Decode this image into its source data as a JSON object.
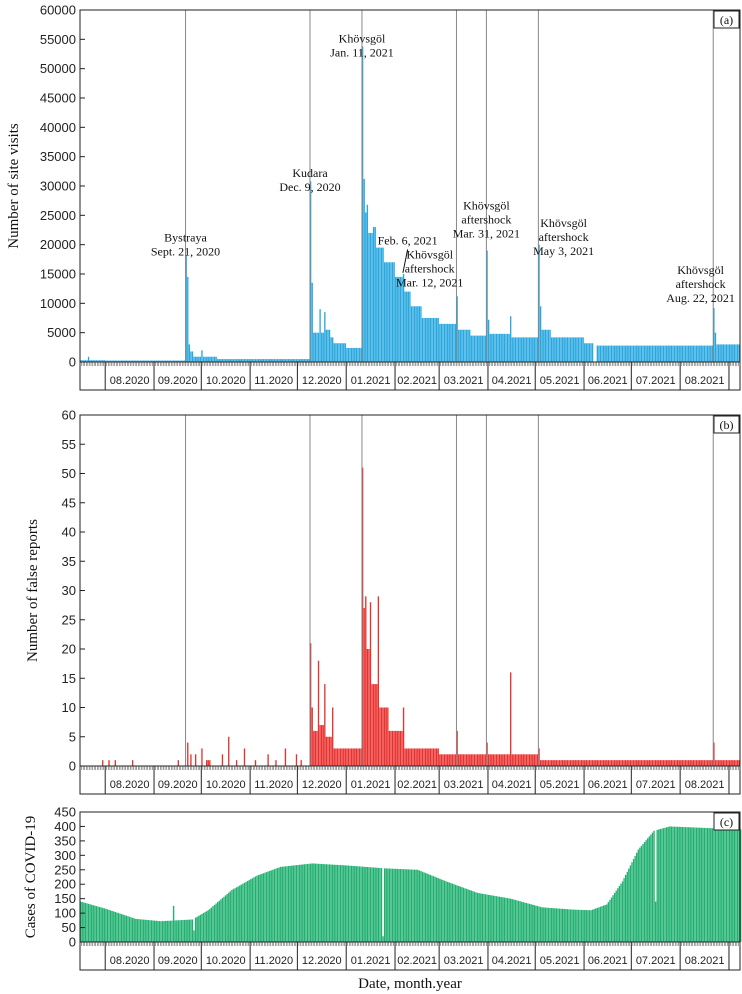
{
  "chart_data": [
    {
      "id": "a",
      "type": "bar",
      "panel_label": "(a)",
      "ylabel": "Number of site visits",
      "ylim": [
        0,
        60000
      ],
      "yticks": [
        0,
        5000,
        10000,
        15000,
        20000,
        25000,
        30000,
        35000,
        40000,
        45000,
        50000,
        55000,
        60000
      ],
      "color": "#29a8e0",
      "months": [
        "08.2020",
        "09.2020",
        "10.2020",
        "11.2020",
        "12.2020",
        "01.2021",
        "02.2021",
        "03.2021",
        "04.2021",
        "05.2021",
        "06.2021",
        "07.2021",
        "08.2021"
      ],
      "event_lines": [
        "2020-09-21",
        "2020-12-09",
        "2021-01-11",
        "2021-03-12",
        "2021-03-31",
        "2021-05-03",
        "2021-08-22"
      ],
      "annotations": [
        {
          "lines": [
            "Bystraya",
            "Sept. 21, 2020"
          ],
          "date": "2020-09-21",
          "value": 20500
        },
        {
          "lines": [
            "Kudara",
            "Dec. 9, 2020"
          ],
          "date": "2020-12-09",
          "value": 31500
        },
        {
          "lines": [
            "Khövsgöl",
            "Jan. 11, 2021"
          ],
          "date": "2021-01-11",
          "value": 54500
        },
        {
          "lines": [
            "Feb. 6, 2021"
          ],
          "date": "2021-02-09",
          "value": 20000
        },
        {
          "lines": [
            "Khövsgöl",
            "aftershock",
            "Mar. 12, 2021"
          ],
          "date": "2021-02-23",
          "value": 17600
        },
        {
          "lines": [
            "Khövsgöl",
            "aftershock",
            "Mar. 31, 2021"
          ],
          "date": "2021-03-31",
          "value": 26000
        },
        {
          "lines": [
            "Khövsgöl",
            "aftershock",
            "May 3, 2021"
          ],
          "date": "2021-05-19",
          "value": 23000
        },
        {
          "lines": [
            "Khövsgöl",
            "aftershock",
            "Aug. 22, 2021"
          ],
          "date": "2021-08-14",
          "value": 15000
        }
      ],
      "leader_line": {
        "from_date": "2021-02-09",
        "from_value": 19200,
        "to_date": "2021-02-06",
        "to_value": 15200
      },
      "series": [
        {
          "from": "2020-07-16",
          "to": "2020-07-31",
          "value": 300
        },
        {
          "from": "2020-07-21",
          "to": "2020-07-21",
          "value": 900
        },
        {
          "from": "2020-08-01",
          "to": "2020-09-20",
          "value": 250
        },
        {
          "from": "2020-09-21",
          "to": "2020-09-21",
          "value": 18200
        },
        {
          "from": "2020-09-22",
          "to": "2020-09-22",
          "value": 14500
        },
        {
          "from": "2020-09-23",
          "to": "2020-09-23",
          "value": 3000
        },
        {
          "from": "2020-09-24",
          "to": "2020-09-25",
          "value": 1800
        },
        {
          "from": "2020-09-26",
          "to": "2020-09-30",
          "value": 900
        },
        {
          "from": "2020-10-01",
          "to": "2020-10-01",
          "value": 2000
        },
        {
          "from": "2020-10-02",
          "to": "2020-10-10",
          "value": 900
        },
        {
          "from": "2020-10-11",
          "to": "2020-12-08",
          "value": 500
        },
        {
          "from": "2020-12-09",
          "to": "2020-12-09",
          "value": 30800
        },
        {
          "from": "2020-12-10",
          "to": "2020-12-10",
          "value": 13500
        },
        {
          "from": "2020-12-11",
          "to": "2020-12-14",
          "value": 5000
        },
        {
          "from": "2020-12-15",
          "to": "2020-12-15",
          "value": 9000
        },
        {
          "from": "2020-12-16",
          "to": "2020-12-17",
          "value": 5000
        },
        {
          "from": "2020-12-18",
          "to": "2020-12-18",
          "value": 8500
        },
        {
          "from": "2020-12-19",
          "to": "2020-12-21",
          "value": 5500
        },
        {
          "from": "2020-12-22",
          "to": "2020-12-23",
          "value": 4200
        },
        {
          "from": "2020-12-24",
          "to": "2020-12-31",
          "value": 3200
        },
        {
          "from": "2021-01-01",
          "to": "2021-01-10",
          "value": 2400
        },
        {
          "from": "2021-01-11",
          "to": "2021-01-11",
          "value": 53800
        },
        {
          "from": "2021-01-12",
          "to": "2021-01-12",
          "value": 31200
        },
        {
          "from": "2021-01-13",
          "to": "2021-01-13",
          "value": 25500
        },
        {
          "from": "2021-01-14",
          "to": "2021-01-14",
          "value": 26800
        },
        {
          "from": "2021-01-15",
          "to": "2021-01-17",
          "value": 22000
        },
        {
          "from": "2021-01-18",
          "to": "2021-01-19",
          "value": 23000
        },
        {
          "from": "2021-01-20",
          "to": "2021-01-24",
          "value": 19500
        },
        {
          "from": "2021-01-25",
          "to": "2021-01-31",
          "value": 17000
        },
        {
          "from": "2021-02-01",
          "to": "2021-02-05",
          "value": 14500
        },
        {
          "from": "2021-02-06",
          "to": "2021-02-06",
          "value": 15000
        },
        {
          "from": "2021-02-07",
          "to": "2021-02-10",
          "value": 12000
        },
        {
          "from": "2021-02-11",
          "to": "2021-02-17",
          "value": 9500
        },
        {
          "from": "2021-02-18",
          "to": "2021-02-28",
          "value": 7500
        },
        {
          "from": "2021-03-01",
          "to": "2021-03-11",
          "value": 6500
        },
        {
          "from": "2021-03-12",
          "to": "2021-03-12",
          "value": 11200
        },
        {
          "from": "2021-03-13",
          "to": "2021-03-20",
          "value": 5500
        },
        {
          "from": "2021-03-21",
          "to": "2021-03-30",
          "value": 4500
        },
        {
          "from": "2021-03-31",
          "to": "2021-03-31",
          "value": 19000
        },
        {
          "from": "2021-04-01",
          "to": "2021-04-01",
          "value": 7200
        },
        {
          "from": "2021-04-02",
          "to": "2021-04-14",
          "value": 4800
        },
        {
          "from": "2021-04-15",
          "to": "2021-04-15",
          "value": 7800
        },
        {
          "from": "2021-04-16",
          "to": "2021-05-02",
          "value": 4200
        },
        {
          "from": "2021-05-03",
          "to": "2021-05-03",
          "value": 20000
        },
        {
          "from": "2021-05-04",
          "to": "2021-05-04",
          "value": 9500
        },
        {
          "from": "2021-05-05",
          "to": "2021-05-10",
          "value": 5500
        },
        {
          "from": "2021-05-11",
          "to": "2021-05-31",
          "value": 4200
        },
        {
          "from": "2021-06-01",
          "to": "2021-06-06",
          "value": 3200
        },
        {
          "from": "2021-06-07",
          "to": "2021-06-08",
          "value": 0
        },
        {
          "from": "2021-06-09",
          "to": "2021-08-21",
          "value": 2800
        },
        {
          "from": "2021-08-22",
          "to": "2021-08-22",
          "value": 9200
        },
        {
          "from": "2021-08-23",
          "to": "2021-08-23",
          "value": 5000
        },
        {
          "from": "2021-08-24",
          "to": "2021-09-07",
          "value": 3000
        }
      ]
    },
    {
      "id": "b",
      "type": "bar",
      "panel_label": "(b)",
      "ylabel": "Number of false reports",
      "ylim": [
        0,
        60
      ],
      "yticks": [
        0,
        5,
        10,
        15,
        20,
        25,
        30,
        35,
        40,
        45,
        50,
        55,
        60
      ],
      "color": "#e8312e",
      "months": [
        "08.2020",
        "09.2020",
        "10.2020",
        "11.2020",
        "12.2020",
        "01.2021",
        "02.2021",
        "03.2021",
        "04.2021",
        "05.2021",
        "06.2021",
        "07.2021",
        "08.2021"
      ],
      "event_lines": [
        "2020-09-21",
        "2020-12-09",
        "2021-01-11",
        "2021-03-12",
        "2021-03-31",
        "2021-05-03",
        "2021-08-22"
      ],
      "series": [
        {
          "from": "2020-07-30",
          "to": "2020-07-30",
          "value": 1
        },
        {
          "from": "2020-08-03",
          "to": "2020-08-03",
          "value": 1
        },
        {
          "from": "2020-08-07",
          "to": "2020-08-07",
          "value": 1
        },
        {
          "from": "2020-08-18",
          "to": "2020-08-18",
          "value": 1
        },
        {
          "from": "2020-09-16",
          "to": "2020-09-16",
          "value": 1
        },
        {
          "from": "2020-09-22",
          "to": "2020-09-22",
          "value": 4
        },
        {
          "from": "2020-09-24",
          "to": "2020-09-24",
          "value": 2
        },
        {
          "from": "2020-09-27",
          "to": "2020-09-27",
          "value": 2
        },
        {
          "from": "2020-10-01",
          "to": "2020-10-01",
          "value": 3
        },
        {
          "from": "2020-10-04",
          "to": "2020-10-06",
          "value": 1
        },
        {
          "from": "2020-10-14",
          "to": "2020-10-14",
          "value": 2
        },
        {
          "from": "2020-10-18",
          "to": "2020-10-18",
          "value": 5
        },
        {
          "from": "2020-10-23",
          "to": "2020-10-23",
          "value": 1
        },
        {
          "from": "2020-10-28",
          "to": "2020-10-28",
          "value": 3
        },
        {
          "from": "2020-11-04",
          "to": "2020-11-04",
          "value": 1
        },
        {
          "from": "2020-11-12",
          "to": "2020-11-12",
          "value": 2
        },
        {
          "from": "2020-11-17",
          "to": "2020-11-17",
          "value": 1
        },
        {
          "from": "2020-11-23",
          "to": "2020-11-23",
          "value": 3
        },
        {
          "from": "2020-11-30",
          "to": "2020-11-30",
          "value": 2
        },
        {
          "from": "2020-12-03",
          "to": "2020-12-03",
          "value": 1
        },
        {
          "from": "2020-12-09",
          "to": "2020-12-09",
          "value": 21
        },
        {
          "from": "2020-12-10",
          "to": "2020-12-10",
          "value": 10
        },
        {
          "from": "2020-12-11",
          "to": "2020-12-13",
          "value": 6
        },
        {
          "from": "2020-12-14",
          "to": "2020-12-14",
          "value": 18
        },
        {
          "from": "2020-12-15",
          "to": "2020-12-17",
          "value": 7
        },
        {
          "from": "2020-12-18",
          "to": "2020-12-18",
          "value": 14
        },
        {
          "from": "2020-12-19",
          "to": "2020-12-22",
          "value": 5
        },
        {
          "from": "2020-12-23",
          "to": "2020-12-23",
          "value": 10
        },
        {
          "from": "2020-12-24",
          "to": "2020-12-31",
          "value": 3
        },
        {
          "from": "2021-01-01",
          "to": "2021-01-10",
          "value": 3
        },
        {
          "from": "2021-01-11",
          "to": "2021-01-11",
          "value": 51
        },
        {
          "from": "2021-01-12",
          "to": "2021-01-12",
          "value": 27
        },
        {
          "from": "2021-01-13",
          "to": "2021-01-13",
          "value": 29
        },
        {
          "from": "2021-01-14",
          "to": "2021-01-15",
          "value": 20
        },
        {
          "from": "2021-01-16",
          "to": "2021-01-16",
          "value": 28
        },
        {
          "from": "2021-01-17",
          "to": "2021-01-20",
          "value": 14
        },
        {
          "from": "2021-01-21",
          "to": "2021-01-21",
          "value": 29
        },
        {
          "from": "2021-01-22",
          "to": "2021-01-27",
          "value": 10
        },
        {
          "from": "2021-01-28",
          "to": "2021-02-05",
          "value": 6
        },
        {
          "from": "2021-02-06",
          "to": "2021-02-06",
          "value": 10
        },
        {
          "from": "2021-02-07",
          "to": "2021-02-28",
          "value": 3
        },
        {
          "from": "2021-03-01",
          "to": "2021-03-11",
          "value": 2
        },
        {
          "from": "2021-03-12",
          "to": "2021-03-12",
          "value": 6
        },
        {
          "from": "2021-03-13",
          "to": "2021-03-30",
          "value": 2
        },
        {
          "from": "2021-03-31",
          "to": "2021-03-31",
          "value": 4
        },
        {
          "from": "2021-04-01",
          "to": "2021-04-14",
          "value": 2
        },
        {
          "from": "2021-04-15",
          "to": "2021-04-15",
          "value": 16
        },
        {
          "from": "2021-04-16",
          "to": "2021-05-02",
          "value": 2
        },
        {
          "from": "2021-05-03",
          "to": "2021-05-03",
          "value": 3
        },
        {
          "from": "2021-05-04",
          "to": "2021-05-31",
          "value": 1
        },
        {
          "from": "2021-06-01",
          "to": "2021-08-21",
          "value": 1
        },
        {
          "from": "2021-08-22",
          "to": "2021-08-22",
          "value": 4
        },
        {
          "from": "2021-08-23",
          "to": "2021-09-07",
          "value": 1
        }
      ]
    },
    {
      "id": "c",
      "type": "bar",
      "panel_label": "(c)",
      "ylabel": "Cases of COVID-19",
      "xlabel": "Date, month.year",
      "ylim": [
        0,
        450
      ],
      "yticks": [
        0,
        50,
        100,
        150,
        200,
        250,
        300,
        350,
        400,
        450
      ],
      "color": "#20b070",
      "months": [
        "08.2020",
        "09.2020",
        "10.2020",
        "11.2020",
        "12.2020",
        "01.2021",
        "02.2021",
        "03.2021",
        "04.2021",
        "05.2021",
        "06.2021",
        "07.2021",
        "08.2021"
      ],
      "curve_points": [
        [
          "2020-07-16",
          140
        ],
        [
          "2020-08-01",
          115
        ],
        [
          "2020-08-20",
          80
        ],
        [
          "2020-09-05",
          72
        ],
        [
          "2020-09-25",
          78
        ],
        [
          "2020-10-05",
          110
        ],
        [
          "2020-10-20",
          180
        ],
        [
          "2020-11-05",
          230
        ],
        [
          "2020-11-20",
          260
        ],
        [
          "2020-12-10",
          272
        ],
        [
          "2021-01-01",
          265
        ],
        [
          "2021-01-25",
          255
        ],
        [
          "2021-02-15",
          250
        ],
        [
          "2021-03-05",
          210
        ],
        [
          "2021-03-25",
          170
        ],
        [
          "2021-04-15",
          150
        ],
        [
          "2021-05-05",
          120
        ],
        [
          "2021-05-25",
          112
        ],
        [
          "2021-06-05",
          110
        ],
        [
          "2021-06-15",
          130
        ],
        [
          "2021-06-25",
          210
        ],
        [
          "2021-07-05",
          320
        ],
        [
          "2021-07-15",
          385
        ],
        [
          "2021-07-25",
          400
        ],
        [
          "2021-09-07",
          390
        ]
      ],
      "dips": [
        {
          "date": "2020-09-13",
          "value": 125
        },
        {
          "date": "2020-09-26",
          "value": 40
        },
        {
          "date": "2021-01-24",
          "value": 20
        },
        {
          "date": "2021-07-16",
          "value": 140
        }
      ]
    }
  ]
}
